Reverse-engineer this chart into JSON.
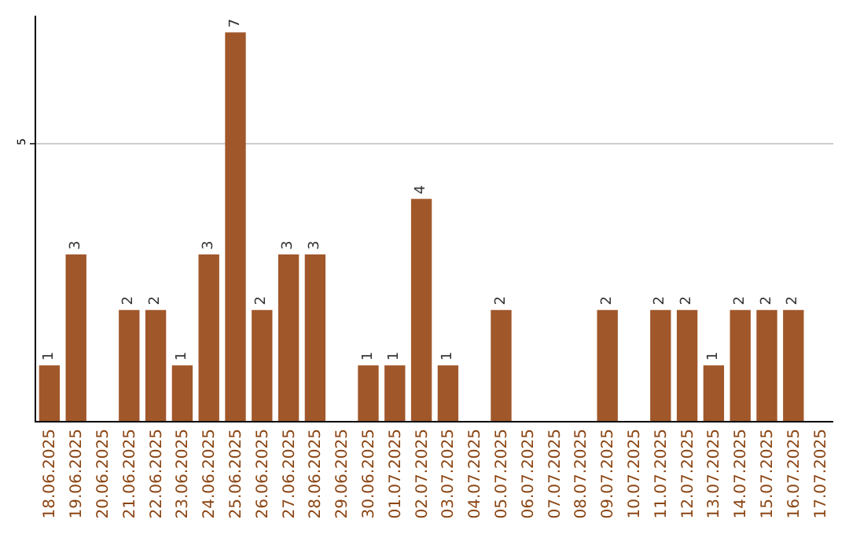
{
  "chart_data": {
    "type": "bar",
    "categories": [
      "18.06.2025",
      "19.06.2025",
      "20.06.2025",
      "21.06.2025",
      "22.06.2025",
      "23.06.2025",
      "24.06.2025",
      "25.06.2025",
      "26.06.2025",
      "27.06.2025",
      "28.06.2025",
      "29.06.2025",
      "30.06.2025",
      "01.07.2025",
      "02.07.2025",
      "03.07.2025",
      "04.07.2025",
      "05.07.2025",
      "06.07.2025",
      "07.07.2025",
      "08.07.2025",
      "09.07.2025",
      "10.07.2025",
      "11.07.2025",
      "12.07.2025",
      "13.07.2025",
      "14.07.2025",
      "15.07.2025",
      "16.07.2025",
      "17.07.2025"
    ],
    "values": [
      1,
      3,
      0,
      2,
      2,
      1,
      3,
      7,
      2,
      3,
      3,
      0,
      1,
      1,
      4,
      1,
      0,
      2,
      0,
      0,
      0,
      2,
      0,
      2,
      2,
      1,
      2,
      2,
      2,
      0
    ],
    "value_labels": [
      "1",
      "3",
      null,
      "2",
      "2",
      "1",
      "3",
      "7",
      "2",
      "3",
      "3",
      null,
      "1",
      "1",
      "4",
      "1",
      null,
      "2",
      null,
      null,
      null,
      "2",
      null,
      "2",
      "2",
      "1",
      "2",
      "2",
      "2",
      null
    ],
    "color": "#a0572a",
    "ylim": [
      0,
      7.3
    ],
    "yticks": [
      5
    ],
    "grid": "y"
  }
}
